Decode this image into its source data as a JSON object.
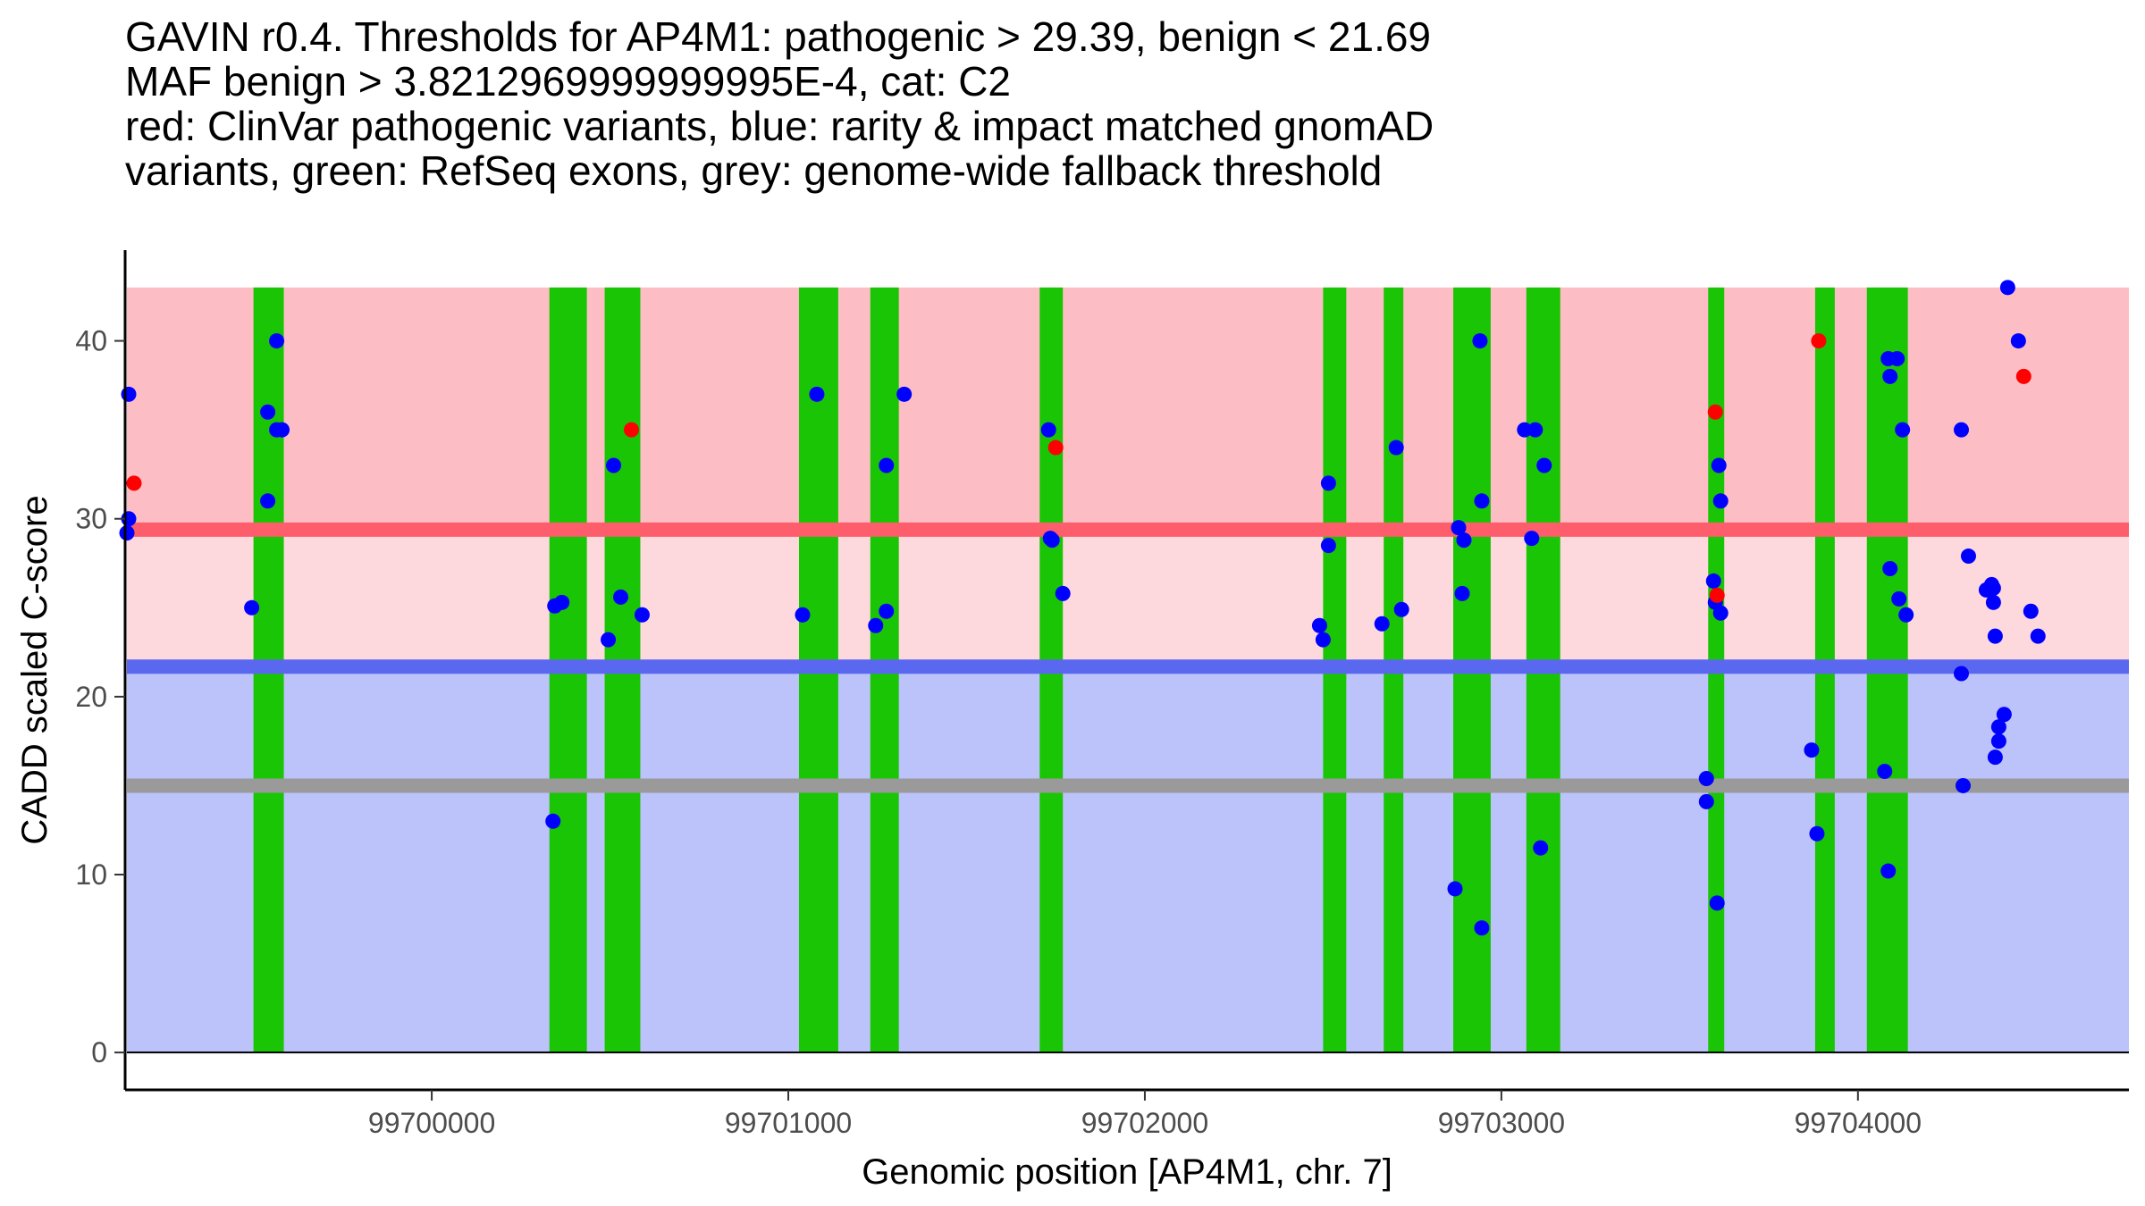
{
  "chart_data": {
    "type": "scatter",
    "title_lines": [
      "GAVIN r0.4. Thresholds for AP4M1: pathogenic > 29.39, benign < 21.69",
      "MAF benign > 3.8212969999999995E-4, cat: C2",
      "red: ClinVar pathogenic variants, blue: rarity & impact matched gnomAD",
      "variants, green: RefSeq exons, grey: genome-wide fallback threshold"
    ],
    "xlabel": "Genomic position [AP4M1, chr. 7]",
    "ylabel": "CADD scaled C-score",
    "xlim": [
      99699140,
      99704760
    ],
    "ylim": [
      -2.1,
      45.1
    ],
    "x_ticks": [
      99700000,
      99701000,
      99702000,
      99703000,
      99704000
    ],
    "x_tick_labels": [
      "99700000",
      "99701000",
      "99702000",
      "99703000",
      "99704000"
    ],
    "y_ticks": [
      0,
      10,
      20,
      30,
      40
    ],
    "y_tick_labels": [
      "0",
      "10",
      "20",
      "30",
      "40"
    ],
    "thresholds": {
      "pathogenic": 29.39,
      "benign": 21.69,
      "fallback": 15.0,
      "max": 43.0
    },
    "colors": {
      "pathogenic_region": "#fdbdc4",
      "mid_region": "#fdd8dd",
      "benign_region": "#bcc2fa",
      "pathogenic_line": "#fe5d6c",
      "benign_line": "#5a68f0",
      "fallback_line": "#9a9a9a",
      "exon": "#19c504",
      "clinvar": "#ff0000",
      "gnomad": "#0000ff"
    },
    "exons": [
      [
        99699500,
        99699585
      ],
      [
        99700330,
        99700435
      ],
      [
        99700485,
        99700585
      ],
      [
        99701030,
        99701140
      ],
      [
        99701230,
        99701310
      ],
      [
        99701705,
        99701770
      ],
      [
        99702500,
        99702565
      ],
      [
        99702670,
        99702725
      ],
      [
        99702865,
        99702970
      ],
      [
        99703070,
        99703165
      ],
      [
        99703580,
        99703625
      ],
      [
        99703880,
        99703935
      ],
      [
        99704025,
        99704140
      ]
    ],
    "series": [
      {
        "name": "ClinVar pathogenic variants",
        "color": "#ff0000",
        "points": [
          [
            99699165,
            32
          ],
          [
            99700560,
            35
          ],
          [
            99701750,
            34
          ],
          [
            99703600,
            36
          ],
          [
            99703605,
            25.7
          ],
          [
            99703890,
            40
          ],
          [
            99704465,
            38
          ]
        ]
      },
      {
        "name": "rarity & impact matched gnomAD variants",
        "color": "#0000ff",
        "points": [
          [
            99699150,
            37
          ],
          [
            99699150,
            30
          ],
          [
            99699145,
            29.2
          ],
          [
            99699495,
            25
          ],
          [
            99699540,
            36
          ],
          [
            99699540,
            31
          ],
          [
            99699565,
            40
          ],
          [
            99699565,
            35
          ],
          [
            99699580,
            35
          ],
          [
            99700340,
            13
          ],
          [
            99700345,
            25.1
          ],
          [
            99700365,
            25.3
          ],
          [
            99700495,
            23.2
          ],
          [
            99700510,
            33
          ],
          [
            99700530,
            25.6
          ],
          [
            99700590,
            24.6
          ],
          [
            99701040,
            24.6
          ],
          [
            99701080,
            37
          ],
          [
            99701245,
            24
          ],
          [
            99701275,
            33
          ],
          [
            99701275,
            24.8
          ],
          [
            99701325,
            37
          ],
          [
            99701730,
            35
          ],
          [
            99701735,
            28.9
          ],
          [
            99701740,
            28.8
          ],
          [
            99701770,
            25.8
          ],
          [
            99702490,
            24
          ],
          [
            99702500,
            23.2
          ],
          [
            99702515,
            32
          ],
          [
            99702515,
            28.5
          ],
          [
            99702665,
            24.1
          ],
          [
            99702705,
            34
          ],
          [
            99702720,
            24.9
          ],
          [
            99702870,
            9.2
          ],
          [
            99702880,
            29.5
          ],
          [
            99702895,
            28.8
          ],
          [
            99702890,
            25.8
          ],
          [
            99702940,
            40
          ],
          [
            99702945,
            31
          ],
          [
            99702945,
            7
          ],
          [
            99703065,
            35
          ],
          [
            99703085,
            28.9
          ],
          [
            99703095,
            35
          ],
          [
            99703110,
            11.5
          ],
          [
            99703120,
            33
          ],
          [
            99703575,
            15.4
          ],
          [
            99703575,
            14.1
          ],
          [
            99703595,
            26.5
          ],
          [
            99703600,
            25.3
          ],
          [
            99703605,
            8.4
          ],
          [
            99703610,
            33
          ],
          [
            99703615,
            31
          ],
          [
            99703615,
            24.7
          ],
          [
            99703870,
            17
          ],
          [
            99703885,
            12.3
          ],
          [
            99704075,
            15.8
          ],
          [
            99704085,
            39
          ],
          [
            99704090,
            38
          ],
          [
            99704090,
            27.2
          ],
          [
            99704085,
            10.2
          ],
          [
            99704110,
            39
          ],
          [
            99704115,
            25.5
          ],
          [
            99704125,
            35
          ],
          [
            99704135,
            24.6
          ],
          [
            99704290,
            35
          ],
          [
            99704290,
            21.3
          ],
          [
            99704295,
            15
          ],
          [
            99704310,
            27.9
          ],
          [
            99704360,
            26
          ],
          [
            99704375,
            26.3
          ],
          [
            99704380,
            26.1
          ],
          [
            99704380,
            25.3
          ],
          [
            99704385,
            23.4
          ],
          [
            99704385,
            16.6
          ],
          [
            99704395,
            17.5
          ],
          [
            99704395,
            18.3
          ],
          [
            99704410,
            19
          ],
          [
            99704420,
            43
          ],
          [
            99704450,
            40
          ],
          [
            99704485,
            24.8
          ],
          [
            99704505,
            23.4
          ]
        ]
      }
    ]
  }
}
